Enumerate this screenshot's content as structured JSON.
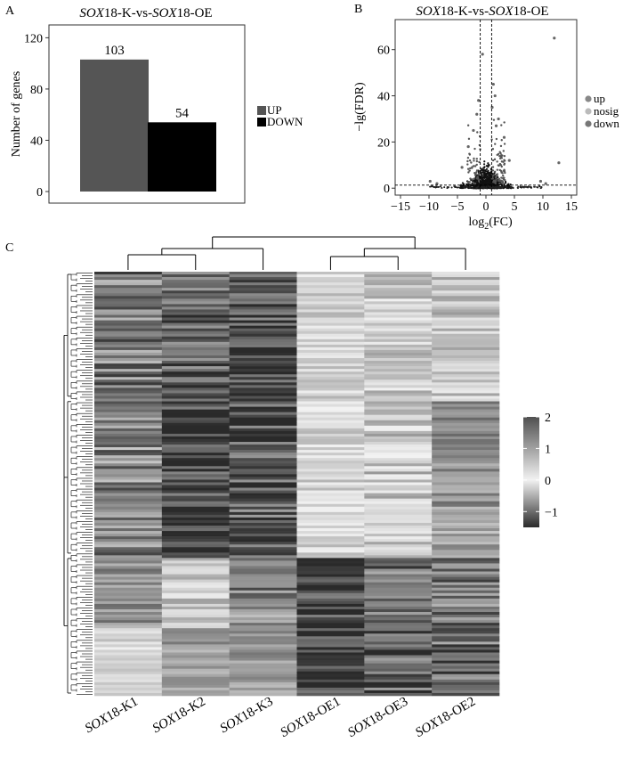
{
  "panels": {
    "a": {
      "letter": "A"
    },
    "b": {
      "letter": "B"
    },
    "c": {
      "letter": "C"
    }
  },
  "chart_data": [
    {
      "type": "bar",
      "title_prefix": "SOX",
      "title_suffix": "18-K-vs-",
      "title_prefix2": "SOX",
      "title_suffix2": "18-OE",
      "ylabel": "Number of genes",
      "ylim": [
        0,
        130
      ],
      "yticks": [
        0,
        40,
        80,
        120
      ],
      "grid": false,
      "legend_position": "right",
      "series": [
        {
          "name": "UP",
          "value": 103,
          "color": "#555555"
        },
        {
          "name": "DOWN",
          "value": 54,
          "color": "#000000"
        }
      ]
    },
    {
      "type": "scatter",
      "title_prefix": "SOX",
      "title_suffix": "18-K-vs-",
      "title_prefix2": "SOX",
      "title_suffix2": "18-OE",
      "ylabel": "−lg(FDR)",
      "xlabel_main": "log",
      "xlabel_sub": "2",
      "xlabel_tail": "(FC)",
      "xlim": [
        -15,
        15
      ],
      "ylim": [
        -3,
        73
      ],
      "xticks": [
        -15,
        -10,
        -5,
        0,
        5,
        10,
        15
      ],
      "yticks": [
        0,
        20,
        40,
        60
      ],
      "vlines": [
        -1,
        1
      ],
      "hline": 1.3,
      "legend_position": "right",
      "legend": [
        {
          "name": "up",
          "color": "#888888"
        },
        {
          "name": "nosig",
          "color": "#bbbbbb"
        },
        {
          "name": "down",
          "color": "#777777"
        }
      ],
      "outliers": [
        {
          "x": 12,
          "y": 65
        },
        {
          "x": 12.8,
          "y": 11
        },
        {
          "x": 1.3,
          "y": 45
        },
        {
          "x": 1.6,
          "y": 40
        },
        {
          "x": 1.1,
          "y": 35
        },
        {
          "x": 2.2,
          "y": 30
        },
        {
          "x": 1.8,
          "y": 27
        },
        {
          "x": -1.3,
          "y": 38
        },
        {
          "x": -1.6,
          "y": 32
        },
        {
          "x": -2.2,
          "y": 25
        },
        {
          "x": -3.1,
          "y": 18
        },
        {
          "x": -0.6,
          "y": 58
        },
        {
          "x": 3.2,
          "y": 22
        },
        {
          "x": 4.1,
          "y": 12
        },
        {
          "x": -4.2,
          "y": 9
        },
        {
          "x": -9.8,
          "y": 3
        },
        {
          "x": -8.6,
          "y": 2
        },
        {
          "x": 9.6,
          "y": 3
        },
        {
          "x": 10.5,
          "y": 2
        }
      ]
    },
    {
      "type": "heatmap",
      "columns": [
        {
          "prefix": "SOX",
          "suffix": "18-K1"
        },
        {
          "prefix": "SOX",
          "suffix": "18-K2"
        },
        {
          "prefix": "SOX",
          "suffix": "18-K3"
        },
        {
          "prefix": "SOX",
          "suffix": "18-OE1"
        },
        {
          "prefix": "SOX",
          "suffix": "18-OE3"
        },
        {
          "prefix": "SOX",
          "suffix": "18-OE2"
        }
      ],
      "n_rows": 157,
      "color_scale": {
        "min": -1.5,
        "max": 2,
        "ticks": [
          -1,
          0,
          1,
          2
        ]
      },
      "cluster_columns": true,
      "cluster_rows": true
    }
  ]
}
